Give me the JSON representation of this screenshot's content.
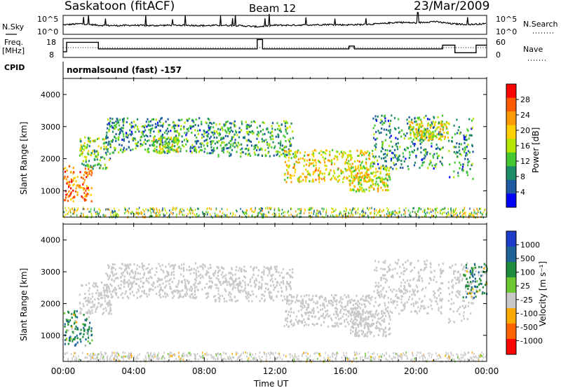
{
  "header": {
    "station": "Saskatoon (fitACF)",
    "beam": "Beam 12",
    "date": "23/Mar/2009"
  },
  "noise_panel": {
    "left_label": "N.Sky",
    "right_label": "N.Search",
    "left_ticks": [
      "10^5",
      "10^0"
    ],
    "right_ticks": [
      "10^5",
      "10^0"
    ]
  },
  "freq_panel": {
    "left_label_1": "Freq.",
    "left_label_2": "[MHz]",
    "right_label": "Nave",
    "left_ticks": [
      "18",
      "8"
    ],
    "right_ticks": [
      "60",
      "0"
    ]
  },
  "cpid": {
    "label": "CPID",
    "value": "normalsound (fast) -157"
  },
  "power_panel": {
    "ylabel": "Slant Range [km]",
    "colorbar_label": "Power [dB]",
    "colorbar_ticks": [
      "28",
      "24",
      "20",
      "16",
      "12",
      "8",
      "4"
    ],
    "colorbar_colors": [
      "#ff0000",
      "#ff5a00",
      "#ff9a00",
      "#ffd000",
      "#b4e600",
      "#46c832",
      "#1e8c64",
      "#1e5aa0",
      "#0000ff"
    ]
  },
  "velocity_panel": {
    "ylabel": "Slant Range [km]",
    "colorbar_label": "Velocity [m s⁻¹]",
    "colorbar_ticks": [
      "1000",
      "500",
      "100",
      "25",
      "-25",
      "-100",
      "-500",
      "-1000"
    ],
    "colorbar_colors": [
      "#1e3cc8",
      "#1e6496",
      "#1e8c3c",
      "#6ec832",
      "#c8c8c8",
      "#ffaa00",
      "#ff6400",
      "#ff0000"
    ]
  },
  "xaxis": {
    "label": "Time UT",
    "ticks": [
      "00:00",
      "04:00",
      "08:00",
      "12:00",
      "16:00",
      "20:00",
      "00:00"
    ]
  },
  "chart_data": [
    {
      "type": "line",
      "title": "",
      "series": [
        {
          "name": "N.Sky",
          "description_values_log10": [
            2.5,
            2.8,
            2.4,
            2.3,
            2.4,
            2.3,
            2.4,
            2.4,
            2.3,
            2.4,
            2.3,
            2.0,
            2.4,
            2.4,
            2.5,
            2.6,
            2.5,
            2.6,
            2.8,
            3.2,
            3.0,
            3.4,
            2.8,
            2.6,
            2.8
          ]
        }
      ],
      "x": [
        "00:00",
        "01:00",
        "02:00",
        "03:00",
        "04:00",
        "05:00",
        "06:00",
        "07:00",
        "08:00",
        "09:00",
        "10:00",
        "11:00",
        "12:00",
        "13:00",
        "14:00",
        "15:00",
        "16:00",
        "17:00",
        "18:00",
        "19:00",
        "20:00",
        "21:00",
        "22:00",
        "23:00",
        "24:00"
      ],
      "ylim_log10": [
        0,
        5
      ]
    },
    {
      "type": "line",
      "series": [
        {
          "name": "Freq.",
          "x_hours": [
            0,
            0.2,
            0.2,
            2.0,
            2.0,
            11.0,
            11.0,
            11.3,
            11.3,
            16.2,
            16.2,
            16.5,
            16.5,
            21.5,
            21.5,
            22.2,
            22.2,
            23.4,
            23.4,
            24
          ],
          "values": [
            11,
            11,
            16,
            16,
            12.5,
            12.5,
            17.5,
            17.5,
            12.5,
            12.5,
            14,
            14,
            12.5,
            12.5,
            14.5,
            14.5,
            10.5,
            10.5,
            14.5,
            14.5
          ]
        }
      ],
      "ylim": [
        8,
        18
      ]
    },
    {
      "type": "heatmap",
      "ylabel": "Slant Range [km]",
      "ylim": [
        180,
        4500
      ],
      "yticks": [
        1000,
        2000,
        3000,
        4000
      ],
      "xlim_hours": [
        0,
        24
      ],
      "colorbar": "Power [dB]",
      "clim": [
        0,
        30
      ],
      "echo_bands": [
        {
          "t0": 0.0,
          "t1": 1.6,
          "r0": 700,
          "r1": 1800,
          "power": 24
        },
        {
          "t0": 0.9,
          "t1": 2.7,
          "r0": 1700,
          "r1": 2700,
          "power": 12
        },
        {
          "t0": 2.4,
          "t1": 8.5,
          "r0": 2200,
          "r1": 3300,
          "power": 8
        },
        {
          "t0": 5.0,
          "t1": 6.5,
          "r0": 2200,
          "r1": 2700,
          "power": 14
        },
        {
          "t0": 8.5,
          "t1": 13.0,
          "r0": 2100,
          "r1": 3200,
          "power": 10
        },
        {
          "t0": 12.5,
          "t1": 17.5,
          "r0": 1300,
          "r1": 2300,
          "power": 18
        },
        {
          "t0": 16.2,
          "t1": 18.5,
          "r0": 1000,
          "r1": 1800,
          "power": 16
        },
        {
          "t0": 17.5,
          "t1": 21.5,
          "r0": 1700,
          "r1": 3400,
          "power": 8
        },
        {
          "t0": 19.5,
          "t1": 21.8,
          "r0": 2600,
          "r1": 3200,
          "power": 16
        },
        {
          "t0": 21.8,
          "t1": 23.2,
          "r0": 1400,
          "r1": 3300,
          "power": 8
        }
      ]
    },
    {
      "type": "heatmap",
      "ylabel": "Slant Range [km]",
      "ylim": [
        180,
        4500
      ],
      "yticks": [
        1000,
        2000,
        3000,
        4000
      ],
      "xlim_hours": [
        0,
        24
      ],
      "colorbar": "Velocity [m s-1]",
      "clim": [
        -1000,
        1000
      ],
      "echo_bands": [
        {
          "t0": 0.0,
          "t1": 1.6,
          "r0": 700,
          "r1": 1800,
          "velocity": 150
        },
        {
          "t0": 0.9,
          "t1": 2.7,
          "r0": 1700,
          "r1": 2700,
          "velocity": 0
        },
        {
          "t0": 2.4,
          "t1": 8.5,
          "r0": 2200,
          "r1": 3300,
          "velocity": 0
        },
        {
          "t0": 8.5,
          "t1": 13.0,
          "r0": 2100,
          "r1": 3200,
          "velocity": 0
        },
        {
          "t0": 12.5,
          "t1": 17.5,
          "r0": 1300,
          "r1": 2300,
          "velocity": 0
        },
        {
          "t0": 16.2,
          "t1": 18.5,
          "r0": 1000,
          "r1": 1800,
          "velocity": 0
        },
        {
          "t0": 17.5,
          "t1": 21.5,
          "r0": 1700,
          "r1": 3400,
          "velocity": 0
        },
        {
          "t0": 21.8,
          "t1": 23.2,
          "r0": 1400,
          "r1": 3300,
          "velocity": 0
        },
        {
          "t0": 22.6,
          "t1": 24.0,
          "r0": 2200,
          "r1": 3300,
          "velocity": 150
        }
      ]
    }
  ]
}
